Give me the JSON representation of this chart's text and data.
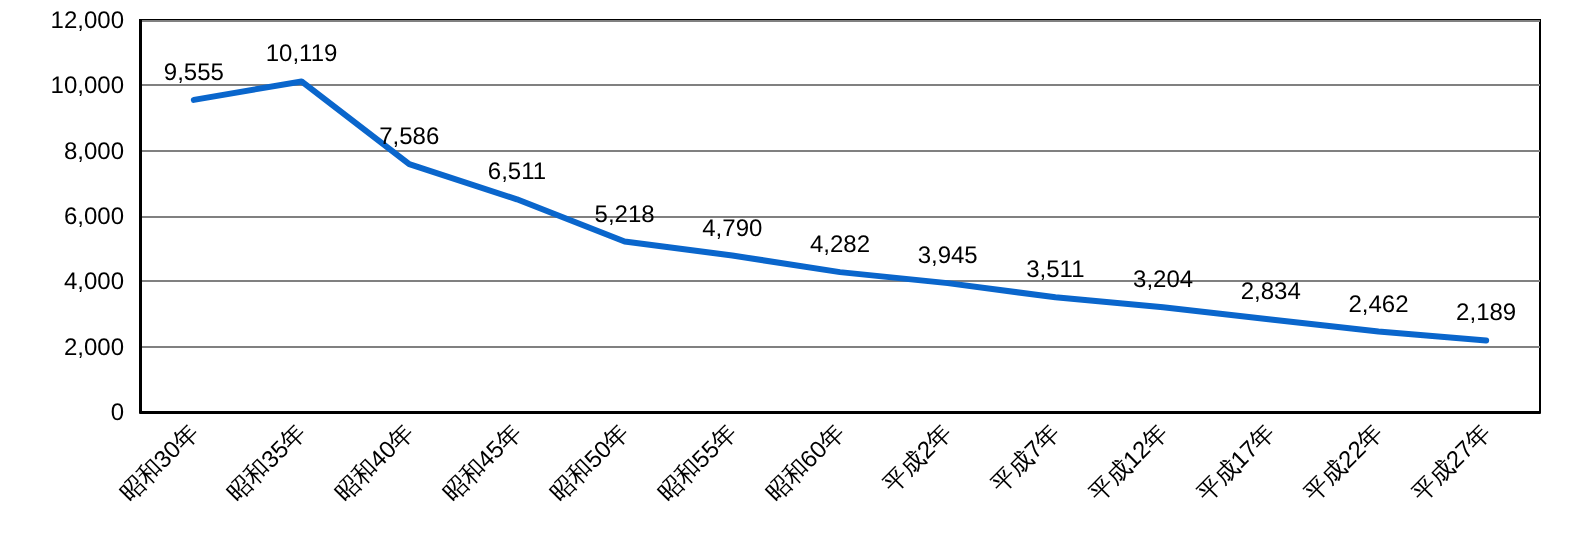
{
  "chart_data": {
    "type": "line",
    "categories": [
      "昭和30年",
      "昭和35年",
      "昭和40年",
      "昭和45年",
      "昭和50年",
      "昭和55年",
      "昭和60年",
      "平成2年",
      "平成7年",
      "平成12年",
      "平成17年",
      "平成22年",
      "平成27年"
    ],
    "series": [
      {
        "color": "#0a66cc",
        "values": [
          9555,
          10119,
          7586,
          6511,
          5218,
          4790,
          4282,
          3945,
          3511,
          3204,
          2834,
          2462,
          2189
        ],
        "value_labels": [
          "9,555",
          "10,119",
          "7,586",
          "6,511",
          "5,218",
          "4,790",
          "4,282",
          "3,945",
          "3,511",
          "3,204",
          "2,834",
          "2,462",
          "2,189"
        ]
      }
    ],
    "ylim": [
      0,
      12000
    ],
    "yticks": [
      {
        "value": 0,
        "label": "0"
      },
      {
        "value": 2000,
        "label": "2,000"
      },
      {
        "value": 4000,
        "label": "4,000"
      },
      {
        "value": 6000,
        "label": "6,000"
      },
      {
        "value": 8000,
        "label": "8,000"
      },
      {
        "value": 10000,
        "label": "10,000"
      },
      {
        "value": 12000,
        "label": "12,000"
      }
    ],
    "grid": "y",
    "marker": "none",
    "line_style": "solid"
  }
}
